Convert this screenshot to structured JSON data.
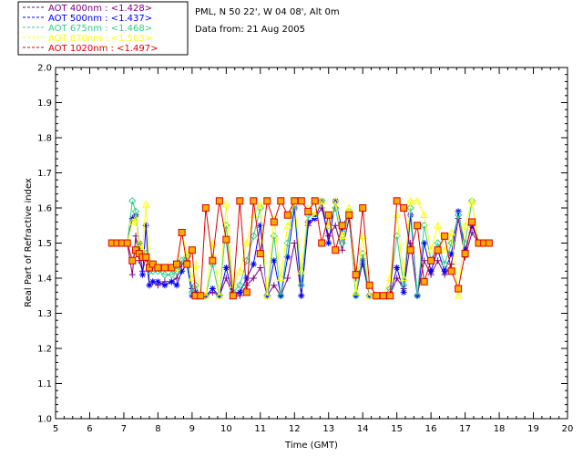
{
  "chart_data": {
    "type": "line",
    "title": "",
    "xlabel": "Time (GMT)",
    "ylabel": "Real Part of Refractive index",
    "xlim": [
      5,
      20
    ],
    "ylim": [
      1.0,
      2.0
    ],
    "xticks": [
      "5",
      "6",
      "7",
      "8",
      "9",
      "10",
      "11",
      "12",
      "13",
      "14",
      "15",
      "16",
      "17",
      "18",
      "19",
      "20"
    ],
    "yticks": [
      "1.0",
      "1.1",
      "1.2",
      "1.3",
      "1.4",
      "1.5",
      "1.6",
      "1.7",
      "1.8",
      "1.9",
      "2.0"
    ],
    "info": {
      "location": "PML, N 50 22', W 04 08', Alt 0m",
      "date": "Data from: 21 Aug 2005"
    },
    "series": [
      {
        "name": "AOT  400nm",
        "legend_label": "AOT  400nm : <1.428>",
        "color": "#800080",
        "marker": "plus",
        "x": [
          6.65,
          6.8,
          6.95,
          7.1,
          7.25,
          7.35,
          7.45,
          7.55,
          7.65,
          7.75,
          7.85,
          8.0,
          8.2,
          8.4,
          8.55,
          8.7,
          8.85,
          9.0,
          9.1,
          9.25,
          9.4,
          9.6,
          9.8,
          10.0,
          10.2,
          10.4,
          10.6,
          10.8,
          11.0,
          11.2,
          11.4,
          11.6,
          11.8,
          12.0,
          12.2,
          12.4,
          12.6,
          12.8,
          13.0,
          13.2,
          13.4,
          13.6,
          13.8,
          14.0,
          14.2,
          14.4,
          14.6,
          14.8,
          15.0,
          15.2,
          15.4,
          15.6,
          15.8,
          16.0,
          16.2,
          16.4,
          16.6,
          16.8,
          17.0,
          17.2,
          17.4,
          17.55,
          17.7
        ],
        "y": [
          1.5,
          1.5,
          1.5,
          1.5,
          1.41,
          1.52,
          1.45,
          1.42,
          1.46,
          1.38,
          1.39,
          1.38,
          1.39,
          1.39,
          1.4,
          1.44,
          1.45,
          1.37,
          1.36,
          1.35,
          1.35,
          1.36,
          1.35,
          1.4,
          1.35,
          1.35,
          1.38,
          1.4,
          1.43,
          1.35,
          1.38,
          1.35,
          1.4,
          1.5,
          1.35,
          1.55,
          1.57,
          1.6,
          1.52,
          1.55,
          1.48,
          1.57,
          1.4,
          1.44,
          1.35,
          1.35,
          1.35,
          1.35,
          1.4,
          1.37,
          1.5,
          1.35,
          1.45,
          1.41,
          1.45,
          1.41,
          1.44,
          1.57,
          1.46,
          1.53,
          1.5,
          1.5,
          1.5
        ]
      },
      {
        "name": "AOT  500nm",
        "legend_label": "AOT  500nm : <1.437>",
        "color": "#0000ff",
        "marker": "asterisk",
        "x": [
          6.65,
          6.8,
          6.95,
          7.1,
          7.25,
          7.35,
          7.45,
          7.55,
          7.65,
          7.75,
          7.85,
          8.0,
          8.2,
          8.4,
          8.55,
          8.7,
          8.85,
          9.0,
          9.1,
          9.25,
          9.4,
          9.6,
          9.8,
          10.0,
          10.2,
          10.4,
          10.6,
          10.8,
          11.0,
          11.2,
          11.4,
          11.6,
          11.8,
          12.0,
          12.2,
          12.4,
          12.6,
          12.8,
          13.0,
          13.2,
          13.4,
          13.6,
          13.8,
          14.0,
          14.2,
          14.4,
          14.6,
          14.8,
          15.0,
          15.2,
          15.4,
          15.6,
          15.8,
          16.0,
          16.2,
          16.4,
          16.6,
          16.8,
          17.0,
          17.2,
          17.4,
          17.55,
          17.7
        ],
        "y": [
          1.5,
          1.5,
          1.5,
          1.5,
          1.57,
          1.58,
          1.5,
          1.41,
          1.55,
          1.38,
          1.39,
          1.39,
          1.38,
          1.39,
          1.38,
          1.42,
          1.44,
          1.35,
          1.36,
          1.35,
          1.35,
          1.37,
          1.35,
          1.43,
          1.35,
          1.36,
          1.4,
          1.44,
          1.55,
          1.35,
          1.45,
          1.35,
          1.46,
          1.6,
          1.35,
          1.56,
          1.57,
          1.62,
          1.5,
          1.62,
          1.54,
          1.58,
          1.35,
          1.45,
          1.35,
          1.35,
          1.35,
          1.35,
          1.43,
          1.36,
          1.58,
          1.35,
          1.5,
          1.42,
          1.48,
          1.42,
          1.47,
          1.59,
          1.48,
          1.55,
          1.5,
          1.5,
          1.5
        ]
      },
      {
        "name": "AOT  675nm",
        "legend_label": "AOT  675nm : <1.468>",
        "color": "#33cc88",
        "marker": "diamond",
        "x": [
          6.65,
          6.8,
          6.95,
          7.1,
          7.25,
          7.35,
          7.45,
          7.55,
          7.65,
          7.75,
          7.85,
          8.0,
          8.2,
          8.4,
          8.55,
          8.7,
          8.85,
          9.0,
          9.1,
          9.25,
          9.4,
          9.6,
          9.8,
          10.0,
          10.2,
          10.4,
          10.6,
          10.8,
          11.0,
          11.2,
          11.4,
          11.6,
          11.8,
          12.0,
          12.2,
          12.4,
          12.6,
          12.8,
          13.0,
          13.2,
          13.4,
          13.6,
          13.8,
          14.0,
          14.2,
          14.4,
          14.6,
          14.8,
          15.0,
          15.2,
          15.4,
          15.6,
          15.8,
          16.0,
          16.2,
          16.4,
          16.6,
          16.8,
          17.0,
          17.2,
          17.4,
          17.55,
          17.7
        ],
        "y": [
          1.5,
          1.5,
          1.5,
          1.5,
          1.62,
          1.59,
          1.48,
          1.46,
          1.47,
          1.42,
          1.42,
          1.42,
          1.41,
          1.41,
          1.42,
          1.45,
          1.46,
          1.36,
          1.38,
          1.35,
          1.35,
          1.44,
          1.35,
          1.55,
          1.36,
          1.38,
          1.45,
          1.52,
          1.6,
          1.35,
          1.52,
          1.35,
          1.5,
          1.62,
          1.38,
          1.58,
          1.58,
          1.62,
          1.55,
          1.6,
          1.5,
          1.59,
          1.35,
          1.47,
          1.35,
          1.35,
          1.35,
          1.37,
          1.52,
          1.38,
          1.6,
          1.35,
          1.55,
          1.45,
          1.5,
          1.44,
          1.5,
          1.58,
          1.5,
          1.62,
          1.5,
          1.5,
          1.5
        ]
      },
      {
        "name": "AOT  870nm",
        "legend_label": "AOT  870nm : <1.503>",
        "color": "#ffff00",
        "marker": "triangle",
        "x": [
          6.65,
          6.8,
          6.95,
          7.1,
          7.25,
          7.35,
          7.45,
          7.55,
          7.65,
          7.75,
          7.85,
          8.0,
          8.2,
          8.4,
          8.55,
          8.7,
          8.85,
          9.0,
          9.1,
          9.25,
          9.4,
          9.6,
          9.8,
          10.0,
          10.2,
          10.4,
          10.6,
          10.8,
          11.0,
          11.2,
          11.4,
          11.6,
          11.8,
          12.0,
          12.2,
          12.4,
          12.6,
          12.8,
          13.0,
          13.2,
          13.4,
          13.6,
          13.8,
          14.0,
          14.2,
          14.4,
          14.6,
          14.8,
          15.0,
          15.2,
          15.4,
          15.6,
          15.8,
          16.0,
          16.2,
          16.4,
          16.6,
          16.8,
          17.0,
          17.2,
          17.4,
          17.55,
          17.7
        ],
        "y": [
          1.5,
          1.5,
          1.5,
          1.5,
          1.56,
          1.57,
          1.5,
          1.48,
          1.61,
          1.45,
          1.43,
          1.43,
          1.43,
          1.43,
          1.43,
          1.53,
          1.47,
          1.4,
          1.44,
          1.35,
          1.35,
          1.5,
          1.35,
          1.61,
          1.38,
          1.42,
          1.5,
          1.58,
          1.61,
          1.35,
          1.57,
          1.4,
          1.55,
          1.62,
          1.42,
          1.6,
          1.58,
          1.62,
          1.55,
          1.62,
          1.52,
          1.6,
          1.36,
          1.52,
          1.35,
          1.35,
          1.35,
          1.4,
          1.58,
          1.4,
          1.62,
          1.62,
          1.58,
          1.48,
          1.55,
          1.48,
          1.53,
          1.35,
          1.55,
          1.62,
          1.5,
          1.5,
          1.5
        ]
      },
      {
        "name": "AOT 1020nm",
        "legend_label": "AOT 1020nm : <1.497>",
        "color": "#dd0000",
        "marker": "square",
        "marker_fill": "#ffaa00",
        "x": [
          6.65,
          6.8,
          6.95,
          7.1,
          7.25,
          7.35,
          7.45,
          7.55,
          7.65,
          7.75,
          7.85,
          8.0,
          8.2,
          8.4,
          8.55,
          8.7,
          8.85,
          9.0,
          9.1,
          9.25,
          9.4,
          9.6,
          9.8,
          10.0,
          10.2,
          10.4,
          10.6,
          10.8,
          11.0,
          11.2,
          11.4,
          11.6,
          11.8,
          12.0,
          12.2,
          12.4,
          12.6,
          12.8,
          13.0,
          13.2,
          13.4,
          13.6,
          13.8,
          14.0,
          14.2,
          14.4,
          14.6,
          14.8,
          15.0,
          15.2,
          15.4,
          15.6,
          15.8,
          16.0,
          16.2,
          16.4,
          16.6,
          16.8,
          17.0,
          17.2,
          17.4,
          17.55,
          17.7
        ],
        "y": [
          1.5,
          1.5,
          1.5,
          1.5,
          1.45,
          1.48,
          1.47,
          1.46,
          1.46,
          1.43,
          1.44,
          1.43,
          1.43,
          1.43,
          1.44,
          1.53,
          1.44,
          1.48,
          1.35,
          1.35,
          1.6,
          1.45,
          1.62,
          1.51,
          1.35,
          1.62,
          1.36,
          1.62,
          1.47,
          1.62,
          1.56,
          1.62,
          1.58,
          1.62,
          1.62,
          1.59,
          1.62,
          1.5,
          1.58,
          1.48,
          1.55,
          1.58,
          1.41,
          1.6,
          1.38,
          1.35,
          1.35,
          1.35,
          1.62,
          1.6,
          1.48,
          1.55,
          1.39,
          1.45,
          1.48,
          1.52,
          1.42,
          1.37,
          1.47,
          1.56,
          1.5,
          1.5,
          1.5
        ]
      }
    ]
  }
}
